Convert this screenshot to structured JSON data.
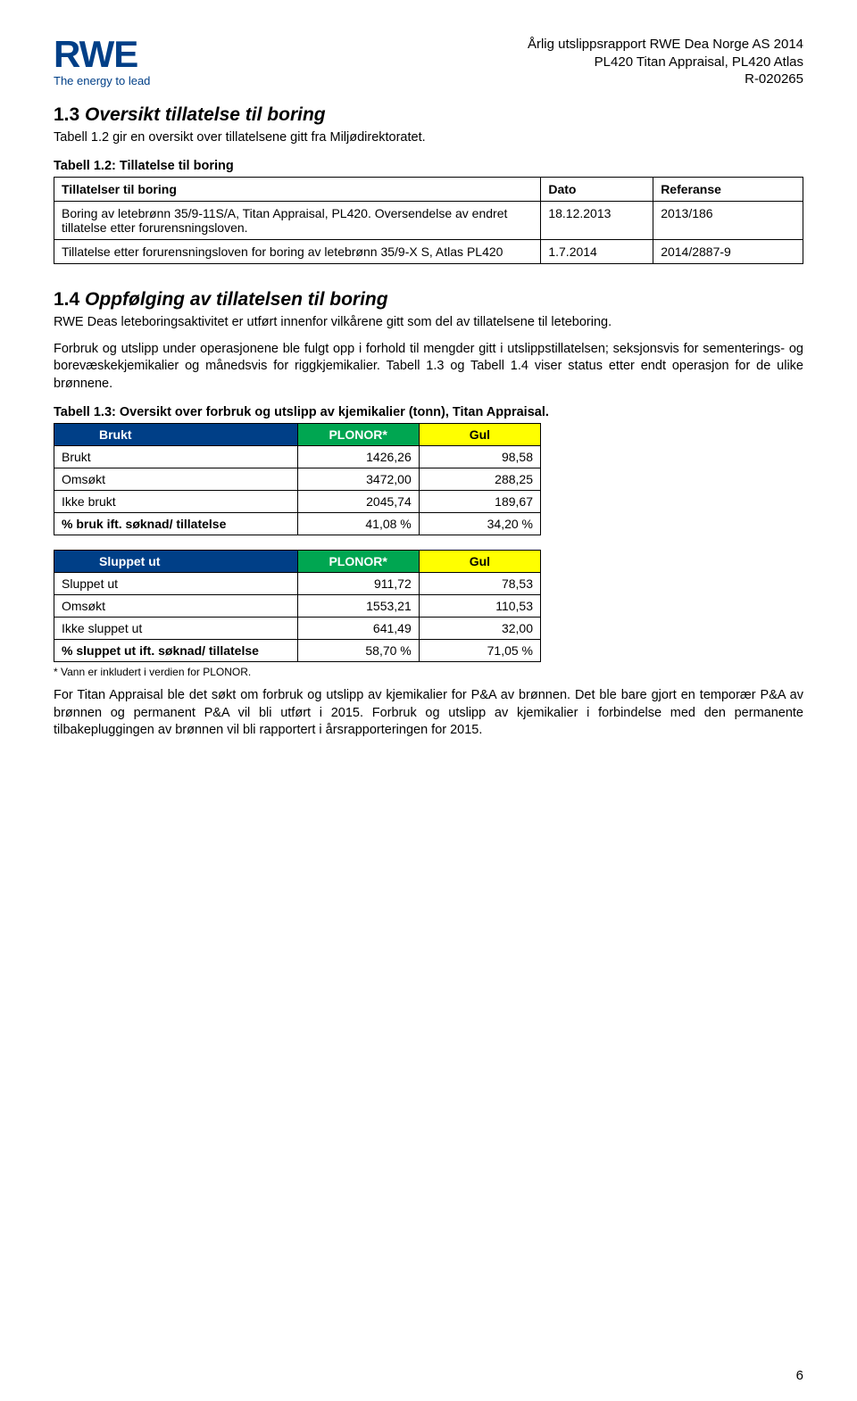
{
  "header": {
    "logo_top": "RWE",
    "logo_bottom": "The energy to lead",
    "line1": "Årlig utslippsrapport RWE Dea Norge AS 2014",
    "line2": "PL420 Titan Appraisal, PL420 Atlas",
    "line3": "R-020265"
  },
  "colors": {
    "logo_blue": "#003f87",
    "header_blue": "#003f87",
    "plonor_green": "#00a651",
    "gul_yellow": "#ffff00",
    "gul_text": "#000000"
  },
  "sec13": {
    "num": "1.3",
    "title": "Oversikt tillatelse til boring",
    "intro": "Tabell 1.2 gir en oversikt over tillatelsene gitt fra Miljødirektoratet."
  },
  "table12": {
    "caption": "Tabell 1.2: Tillatelse til boring",
    "columns": [
      "Tillatelser til boring",
      "Dato",
      "Referanse"
    ],
    "col_widths": [
      "65%",
      "15%",
      "20%"
    ],
    "rows": [
      [
        "Boring av letebrønn 35/9-11S/A, Titan Appraisal, PL420. Oversendelse av endret tillatelse etter forurensningsloven.",
        "18.12.2013",
        "2013/186"
      ],
      [
        "Tillatelse etter forurensningsloven for boring av letebrønn 35/9-X S, Atlas PL420",
        "1.7.2014",
        "2014/2887-9"
      ]
    ]
  },
  "sec14": {
    "num": "1.4",
    "title": "Oppfølging av tillatelsen til boring",
    "para1": "RWE Deas leteboringsaktivitet er utført innenfor vilkårene gitt som del av tillatelsene til leteboring.",
    "para2": "Forbruk og utslipp under operasjonene ble fulgt opp i forhold til mengder gitt i utslippstillatelsen; seksjonsvis for sementerings- og borevæskekjemikalier og månedsvis for riggkjemikalier. Tabell 1.3 og Tabell 1.4 viser status etter endt operasjon for de ulike brønnene."
  },
  "table13": {
    "caption": "Tabell 1.3: Oversikt over forbruk og utslipp av kjemikalier (tonn), Titan Appraisal.",
    "top": {
      "headers": [
        "Brukt",
        "PLONOR*",
        "Gul"
      ],
      "rows": [
        {
          "label": "Brukt",
          "bold": false,
          "plonor": "1426,26",
          "gul": "98,58"
        },
        {
          "label": "Omsøkt",
          "bold": false,
          "plonor": "3472,00",
          "gul": "288,25"
        },
        {
          "label": "Ikke brukt",
          "bold": false,
          "plonor": "2045,74",
          "gul": "189,67"
        },
        {
          "label": "% bruk ift. søknad/ tillatelse",
          "bold": true,
          "plonor": "41,08 %",
          "gul": "34,20 %"
        }
      ]
    },
    "bottom": {
      "headers": [
        "Sluppet ut",
        "PLONOR*",
        "Gul"
      ],
      "rows": [
        {
          "label": "Sluppet ut",
          "bold": false,
          "plonor": "911,72",
          "gul": "78,53"
        },
        {
          "label": "Omsøkt",
          "bold": false,
          "plonor": "1553,21",
          "gul": "110,53"
        },
        {
          "label": "Ikke sluppet ut",
          "bold": false,
          "plonor": "641,49",
          "gul": "32,00"
        },
        {
          "label": "% sluppet ut ift. søknad/ tillatelse",
          "bold": true,
          "plonor": "58,70 %",
          "gul": "71,05 %"
        }
      ]
    },
    "footnote": "* Vann er inkludert i verdien for PLONOR."
  },
  "closing": "For Titan Appraisal ble det søkt om forbruk og utslipp av kjemikalier for P&A av brønnen. Det ble bare gjort en temporær P&A av brønnen og permanent P&A vil bli utført i 2015. Forbruk og utslipp av kjemikalier i forbindelse med den permanente tilbakepluggingen av brønnen vil bli rapportert i årsrapporteringen for 2015.",
  "page_num": "6"
}
